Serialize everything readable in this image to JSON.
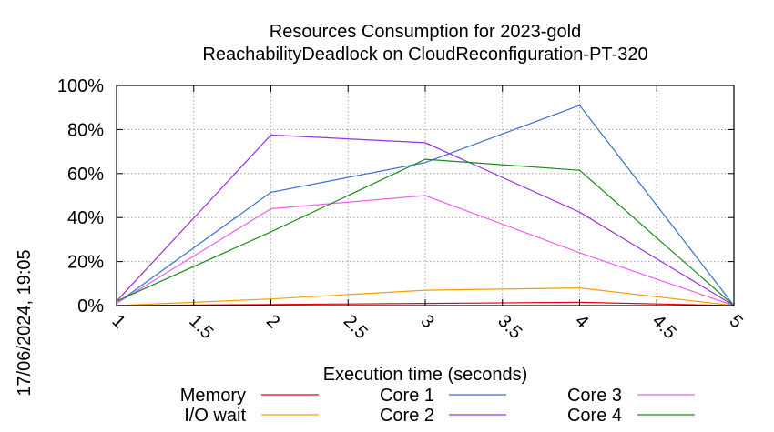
{
  "chart_data": {
    "type": "line",
    "title_lines": [
      "Resources Consumption for 2023-gold",
      "ReachabilityDeadlock on CloudReconfiguration-PT-320"
    ],
    "xlabel": "Execution time (seconds)",
    "ylabel": "",
    "side_label": "17/06/2024, 19:05",
    "xlim": [
      1,
      5
    ],
    "ylim": [
      0,
      100
    ],
    "x_ticks": [
      1,
      1.5,
      2,
      2.5,
      3,
      3.5,
      4,
      4.5,
      5
    ],
    "x_tick_labels": [
      "1",
      "1.5",
      "2",
      "2.5",
      "3",
      "3.5",
      "4",
      "4.5",
      "5"
    ],
    "y_ticks": [
      0,
      20,
      40,
      60,
      80,
      100
    ],
    "y_tick_labels": [
      "0%",
      "20%",
      "40%",
      "60%",
      "80%",
      "100%"
    ],
    "grid": true,
    "legend_position": "bottom",
    "x": [
      1,
      2,
      3,
      4,
      5
    ],
    "series": [
      {
        "name": "Memory",
        "color": "#e8000b",
        "values": [
          0,
          0.5,
          1,
          1.5,
          0
        ]
      },
      {
        "name": "I/O wait",
        "color": "#f0a000",
        "values": [
          0,
          3,
          7,
          8,
          0
        ]
      },
      {
        "name": "Core 1",
        "color": "#3a6fd0",
        "values": [
          1,
          51.5,
          65,
          91,
          0
        ]
      },
      {
        "name": "Core 2",
        "color": "#9b30e0",
        "values": [
          2,
          77.5,
          74,
          42.5,
          0
        ]
      },
      {
        "name": "Core 3",
        "color": "#f060f0",
        "values": [
          1,
          44,
          50,
          24,
          0
        ]
      },
      {
        "name": "Core 4",
        "color": "#1a8a1a",
        "values": [
          2,
          33.5,
          66.5,
          61.5,
          0
        ]
      }
    ]
  }
}
